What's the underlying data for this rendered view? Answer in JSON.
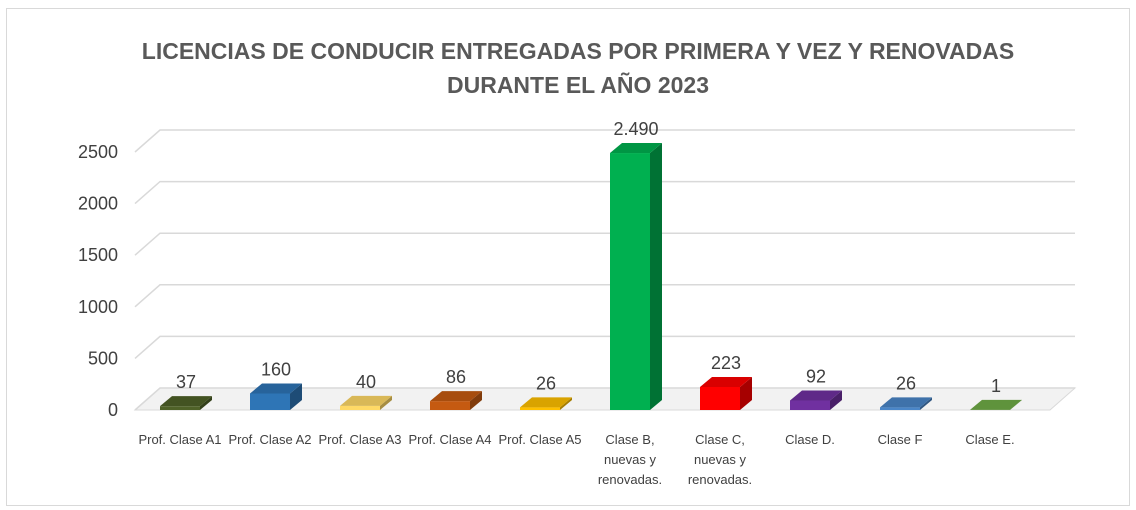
{
  "chart_data": {
    "type": "bar3d",
    "title": "LICENCIAS DE CONDUCIR ENTREGADAS POR PRIMERA Y VEZ Y RENOVADAS DURANTE EL AÑO 2023",
    "categories": [
      "Prof. Clase A1",
      "Prof. Clase A2",
      "Prof. Clase A3",
      "Prof. Clase A4",
      "Prof. Clase A5",
      "Clase B, nuevas y renovadas.",
      "Clase C, nuevas y renovadas.",
      "Clase D.",
      "Clase F",
      "Clase E."
    ],
    "values": [
      37,
      160,
      40,
      86,
      26,
      2490,
      223,
      92,
      26,
      1
    ],
    "value_labels": [
      "37",
      "160",
      "40",
      "86",
      "26",
      "2.490",
      "223",
      "92",
      "26",
      "1"
    ],
    "colors": [
      "#4f6228",
      "#2e75b6",
      "#ffd966",
      "#c55a11",
      "#ffc000",
      "#00b050",
      "#ff0000",
      "#7030a0",
      "#4a86c8",
      "#70ad47"
    ],
    "ylim": [
      0,
      2500
    ],
    "yticks": [
      0,
      500,
      1000,
      1500,
      2000,
      2500
    ],
    "grid": true
  }
}
